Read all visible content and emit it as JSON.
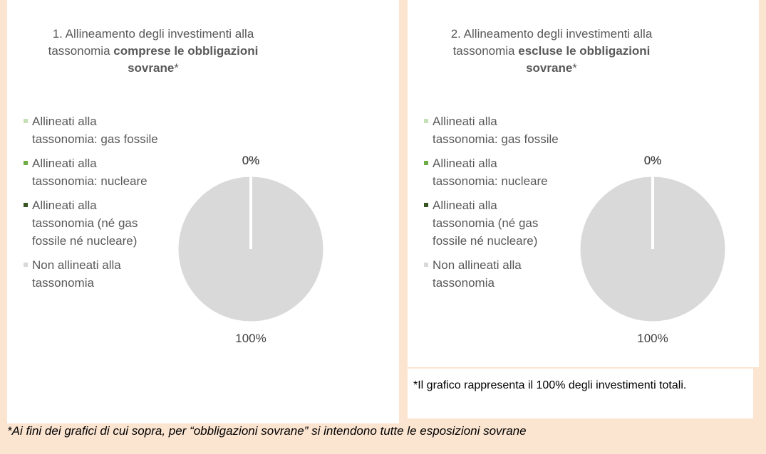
{
  "chart_data": [
    {
      "type": "pie",
      "title": "1. Allineamento degli investimenti alla tassonomia ",
      "title_bold": "comprese le obbligazioni sovrane",
      "title_suffix": "*",
      "categories": [
        "Allineati alla tassonomia: gas fossile",
        "Allineati alla tassonomia: nucleare",
        "Allineati alla tassonomia (né gas fossile né nucleare)",
        "Non allineati alla tassonomia"
      ],
      "values": [
        0,
        0,
        0,
        100
      ],
      "value_labels": [
        "0%",
        "0%",
        "0%",
        "100%"
      ],
      "colors": [
        "#c5e0b4",
        "#70ad47",
        "#375623",
        "#d9d9d9"
      ],
      "legend": "left"
    },
    {
      "type": "pie",
      "title": "2. Allineamento degli investimenti alla tassonomia ",
      "title_bold": "escluse le obbligazioni sovrane",
      "title_suffix": "*",
      "categories": [
        "Allineati alla tassonomia: gas fossile",
        "Allineati alla tassonomia: nucleare",
        "Allineati alla tassonomia (né gas fossile né nucleare)",
        "Non allineati alla tassonomia"
      ],
      "values": [
        0,
        0,
        0,
        100
      ],
      "value_labels": [
        "0%",
        "0%",
        "0%",
        "100%"
      ],
      "colors": [
        "#c5e0b4",
        "#70ad47",
        "#375623",
        "#d9d9d9"
      ],
      "legend": "left",
      "note": "*Il grafico rappresenta il 100% degli investimenti totali."
    }
  ],
  "footnote": "*Ai fini dei grafici di cui sopra, per “obbligazioni sovrane” si intendono tutte le esposizioni sovrane"
}
